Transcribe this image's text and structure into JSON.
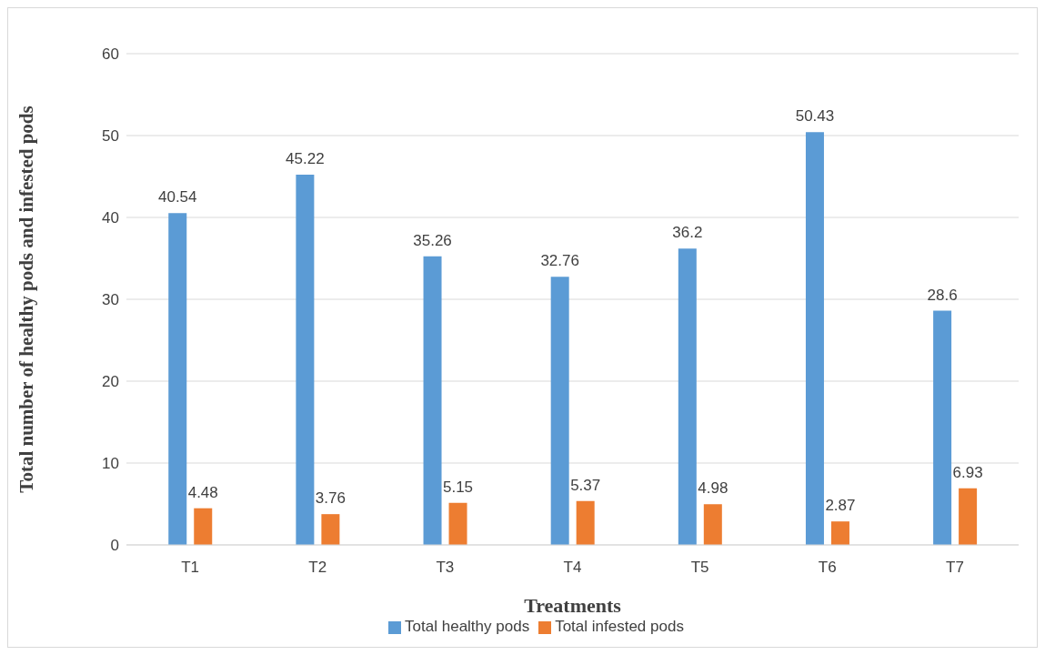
{
  "chart_data": {
    "type": "bar",
    "xlabel": "Treatments",
    "ylabel": "Total number of healthy pods and infested pods",
    "categories": [
      "T1",
      "T2",
      "T3",
      "T4",
      "T5",
      "T6",
      "T7"
    ],
    "series": [
      {
        "name": "Total healthy pods",
        "color": "#5b9bd5",
        "values": [
          40.54,
          45.22,
          35.26,
          32.76,
          36.2,
          50.43,
          28.6
        ]
      },
      {
        "name": "Total infested pods",
        "color": "#ed7d31",
        "values": [
          4.48,
          3.76,
          5.15,
          5.37,
          4.98,
          2.87,
          6.93
        ]
      }
    ],
    "ylim": [
      0,
      60
    ],
    "yticks": [
      0,
      10,
      20,
      30,
      40,
      50,
      60
    ],
    "grid": "y",
    "legend": "bottom",
    "data_labels": true
  }
}
